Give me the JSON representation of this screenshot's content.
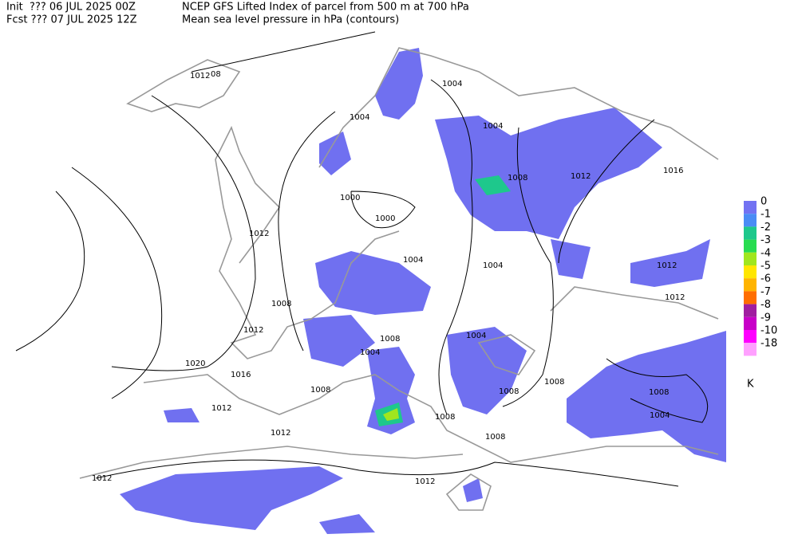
{
  "header": {
    "init_label": "Init  ??? 06 JUL 2025 00Z",
    "fcst_label": "Fcst ??? 07 JUL 2025 12Z",
    "title": "NCEP GFS Lifted Index of parcel from 500 m at 700 hPa",
    "subtitle": "Mean sea level pressure in hPa (contours)"
  },
  "legend": {
    "unit": "K",
    "items": [
      {
        "label": "0",
        "color": "#7272f2"
      },
      {
        "label": "-1",
        "color": "#4a8cf5"
      },
      {
        "label": "-2",
        "color": "#1ec88c"
      },
      {
        "label": "-3",
        "color": "#28dc50"
      },
      {
        "label": "-4",
        "color": "#a0e61e"
      },
      {
        "label": "-5",
        "color": "#ffe600"
      },
      {
        "label": "-6",
        "color": "#ffb400"
      },
      {
        "label": "-7",
        "color": "#ff6e00"
      },
      {
        "label": "-8",
        "color": "#a01ea0"
      },
      {
        "label": "-9",
        "color": "#c800c8"
      },
      {
        "label": "-10",
        "color": "#ff00ff"
      },
      {
        "label": "-18",
        "color": "#ffa0ff"
      }
    ]
  },
  "contour_labels": [
    "1012",
    "08",
    "1004",
    "1004",
    "1004",
    "1008",
    "1012",
    "1016",
    "1000",
    "1000",
    "1012",
    "1004",
    "1004",
    "1012",
    "1012",
    "1008",
    "1012",
    "1008",
    "1004",
    "1004",
    "1020",
    "1016",
    "1008",
    "1008",
    "1008",
    "1008",
    "1012",
    "1008",
    "1004",
    "1012",
    "1008",
    "1012",
    "1012"
  ]
}
